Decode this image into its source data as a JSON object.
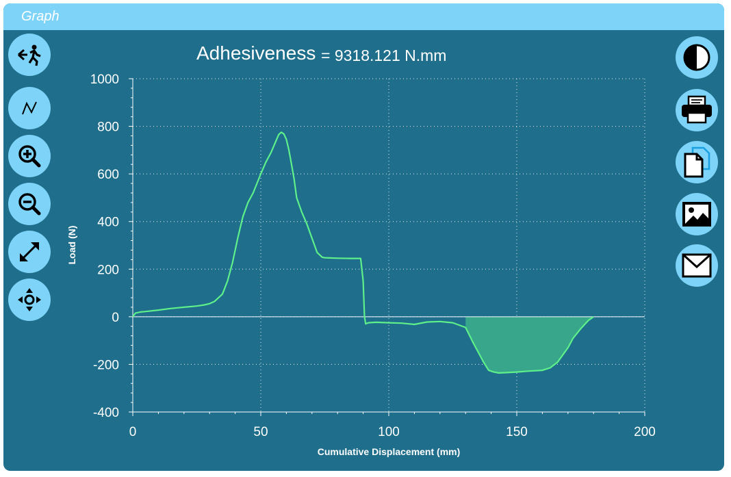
{
  "window": {
    "title": "Graph"
  },
  "toolbar_left": [
    {
      "name": "exit-icon"
    },
    {
      "name": "curve-icon"
    },
    {
      "name": "zoom-in-icon"
    },
    {
      "name": "zoom-out-icon"
    },
    {
      "name": "fit-to-screen-icon"
    },
    {
      "name": "pan-icon"
    }
  ],
  "toolbar_right": [
    {
      "name": "contrast-icon"
    },
    {
      "name": "print-icon"
    },
    {
      "name": "copy-icon"
    },
    {
      "name": "image-icon"
    },
    {
      "name": "email-icon"
    }
  ],
  "colors": {
    "background": "#1f6e8c",
    "accent": "#7dd4f8",
    "curve": "#5ef08a",
    "fill": "#38a68a",
    "grid": "#ffffff"
  },
  "chart_data": {
    "type": "line",
    "title": "Adhesiveness",
    "title_value": "= 9318.121 N.mm",
    "xlabel": "Cumulative Displacement (mm)",
    "ylabel": "Load (N)",
    "xlim": [
      0,
      200
    ],
    "ylim": [
      -400,
      1000
    ],
    "xticks": [
      "0",
      "50",
      "100",
      "150",
      "200"
    ],
    "yticks": [
      "1000",
      "800",
      "600",
      "400",
      "200",
      "0",
      "-200",
      "-400"
    ],
    "grid": true,
    "shaded_region": {
      "x_start": 130,
      "x_end": 180,
      "description": "area under negative load"
    },
    "series": [
      {
        "x": [
          0,
          1,
          3,
          5,
          10,
          15,
          20,
          25,
          28,
          30,
          32,
          35,
          37,
          39,
          41,
          43,
          45,
          47,
          50,
          52,
          54,
          56,
          57,
          58,
          59,
          60,
          61,
          62,
          63,
          64,
          65,
          66,
          68,
          70,
          72,
          74,
          75,
          80,
          85,
          89,
          90,
          90.5,
          91,
          92,
          95,
          100,
          105,
          110,
          115,
          120,
          125,
          130,
          133,
          135,
          137,
          139,
          141,
          143,
          145,
          150,
          155,
          160,
          163,
          166,
          170,
          172,
          175,
          178,
          180
        ],
        "y": [
          0,
          15,
          20,
          22,
          28,
          35,
          40,
          45,
          50,
          55,
          65,
          95,
          150,
          230,
          330,
          420,
          480,
          520,
          600,
          650,
          690,
          740,
          765,
          775,
          768,
          745,
          700,
          640,
          580,
          500,
          470,
          440,
          390,
          330,
          270,
          250,
          248,
          246,
          245,
          245,
          150,
          0,
          -30,
          -25,
          -23,
          -25,
          -27,
          -32,
          -22,
          -20,
          -25,
          -45,
          -110,
          -150,
          -190,
          -225,
          -232,
          -236,
          -235,
          -232,
          -228,
          -225,
          -215,
          -190,
          -130,
          -90,
          -50,
          -15,
          0
        ]
      }
    ]
  }
}
